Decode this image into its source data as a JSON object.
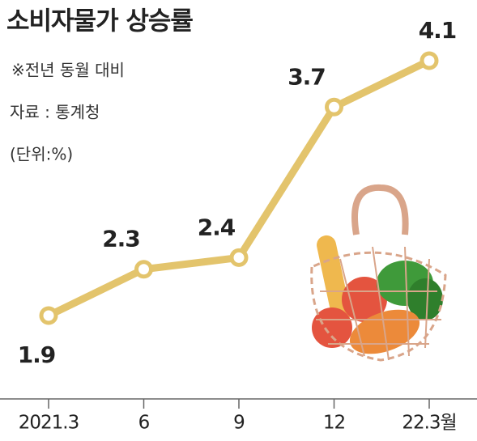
{
  "chart_data": {
    "type": "line",
    "title": "소비자물가 상승률",
    "subtitle": "※전년 동월 대비",
    "source": "자료 : 통계청",
    "unit": "(단위:%)",
    "categories": [
      "2021.3",
      "6",
      "9",
      "12",
      "22.3월"
    ],
    "values": [
      1.9,
      2.3,
      2.4,
      3.7,
      4.1
    ],
    "color": "#e3c46c"
  }
}
